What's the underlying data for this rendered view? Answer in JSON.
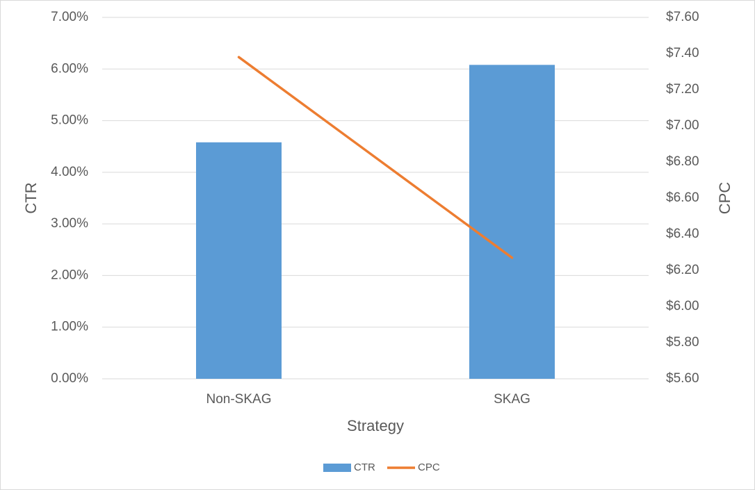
{
  "chart_data": {
    "type": "bar-line",
    "categories": [
      "Non-SKAG",
      "SKAG"
    ],
    "x_label": "Strategy",
    "y_label": "CTR",
    "y2_label": "CPC",
    "series": [
      {
        "name": "CTR",
        "type": "bar",
        "color": "#5b9bd5",
        "values": [
          4.58,
          6.08
        ]
      },
      {
        "name": "CPC",
        "type": "line",
        "axis": "y2",
        "color": "#ed7d31",
        "values": [
          7.38,
          6.27
        ]
      }
    ],
    "ylim": [
      0,
      7
    ],
    "yticks": [
      {
        "value": 0,
        "label": "0.00%"
      },
      {
        "value": 1,
        "label": "1.00%"
      },
      {
        "value": 2,
        "label": "2.00%"
      },
      {
        "value": 3,
        "label": "3.00%"
      },
      {
        "value": 4,
        "label": "4.00%"
      },
      {
        "value": 5,
        "label": "5.00%"
      },
      {
        "value": 6,
        "label": "6.00%"
      },
      {
        "value": 7,
        "label": "7.00%"
      }
    ],
    "y2lim": [
      5.6,
      7.6
    ],
    "y2ticks": [
      {
        "value": 5.6,
        "label": "$5.60"
      },
      {
        "value": 5.8,
        "label": "$5.80"
      },
      {
        "value": 6.0,
        "label": "$6.00"
      },
      {
        "value": 6.2,
        "label": "$6.20"
      },
      {
        "value": 6.4,
        "label": "$6.40"
      },
      {
        "value": 6.6,
        "label": "$6.60"
      },
      {
        "value": 6.8,
        "label": "$6.80"
      },
      {
        "value": 7.0,
        "label": "$7.00"
      },
      {
        "value": 7.2,
        "label": "$7.20"
      },
      {
        "value": 7.4,
        "label": "$7.40"
      },
      {
        "value": 7.6,
        "label": "$7.60"
      }
    ],
    "grid": true,
    "legend": "bottom"
  }
}
